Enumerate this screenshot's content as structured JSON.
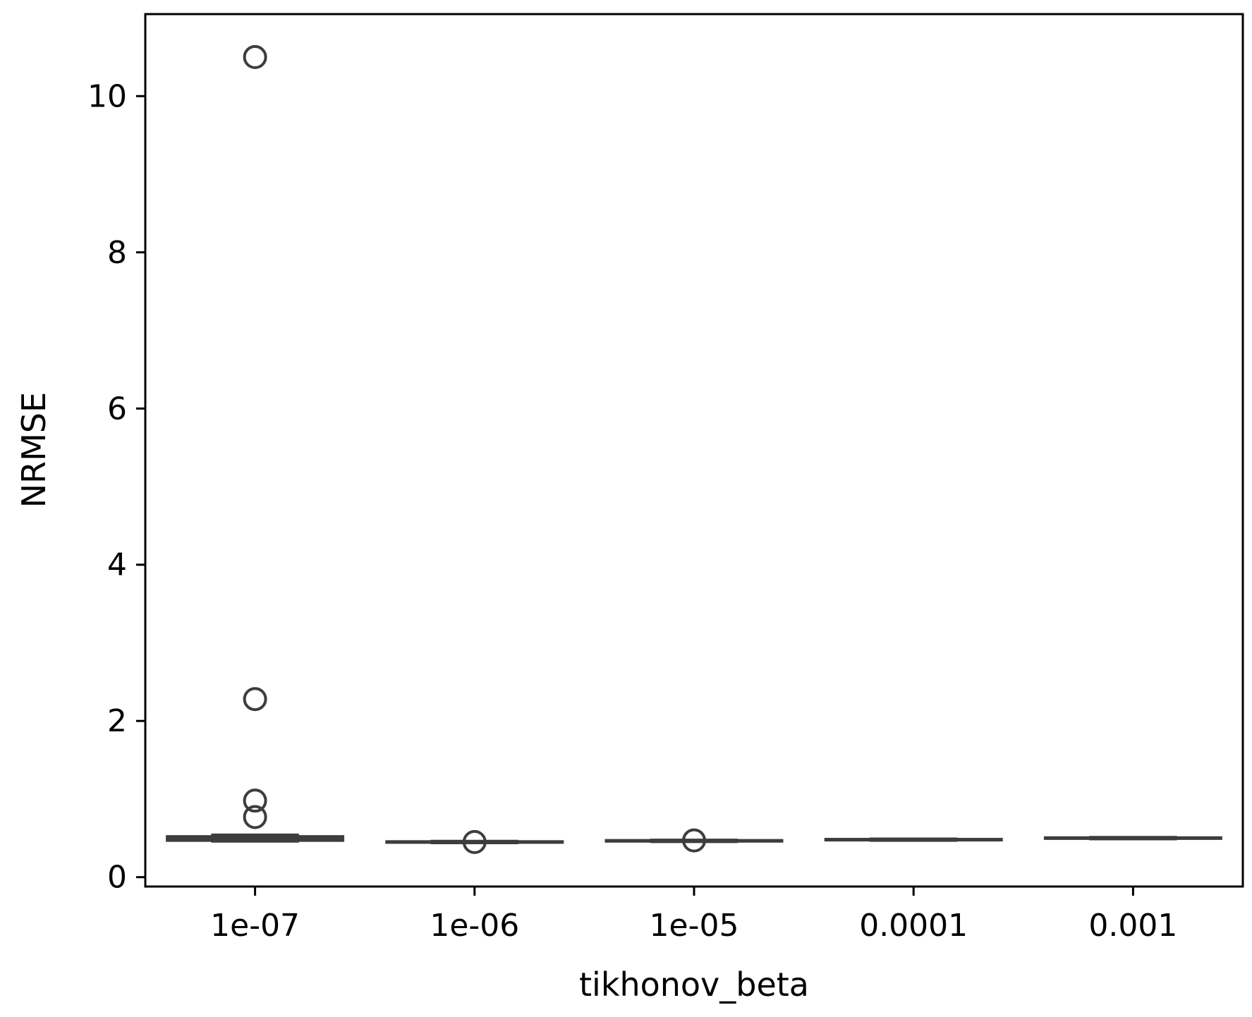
{
  "chart_data": {
    "type": "box",
    "xlabel": "tikhonov_beta",
    "ylabel": "NRMSE",
    "categories": [
      "1e-07",
      "1e-06",
      "1e-05",
      "0.0001",
      "0.001"
    ],
    "ylim": [
      -0.12,
      11.05
    ],
    "yticks": [
      0,
      2,
      4,
      6,
      8,
      10
    ],
    "grid": false,
    "legend": "none",
    "box_color": "#3d3d3d",
    "boxes": [
      {
        "category": "1e-07",
        "whislo": 0.46,
        "q1": 0.47,
        "med": 0.49,
        "q3": 0.52,
        "whishi": 0.54,
        "fliers": [
          10.5,
          2.28,
          0.98,
          0.77
        ]
      },
      {
        "category": "1e-06",
        "whislo": 0.44,
        "q1": 0.445,
        "med": 0.45,
        "q3": 0.455,
        "whishi": 0.46,
        "fliers": [
          0.45
        ]
      },
      {
        "category": "1e-05",
        "whislo": 0.455,
        "q1": 0.46,
        "med": 0.465,
        "q3": 0.47,
        "whishi": 0.475,
        "fliers": [
          0.47
        ]
      },
      {
        "category": "0.0001",
        "whislo": 0.47,
        "q1": 0.475,
        "med": 0.48,
        "q3": 0.485,
        "whishi": 0.49,
        "fliers": []
      },
      {
        "category": "0.001",
        "whislo": 0.49,
        "q1": 0.495,
        "med": 0.5,
        "q3": 0.505,
        "whishi": 0.51,
        "fliers": []
      }
    ]
  }
}
